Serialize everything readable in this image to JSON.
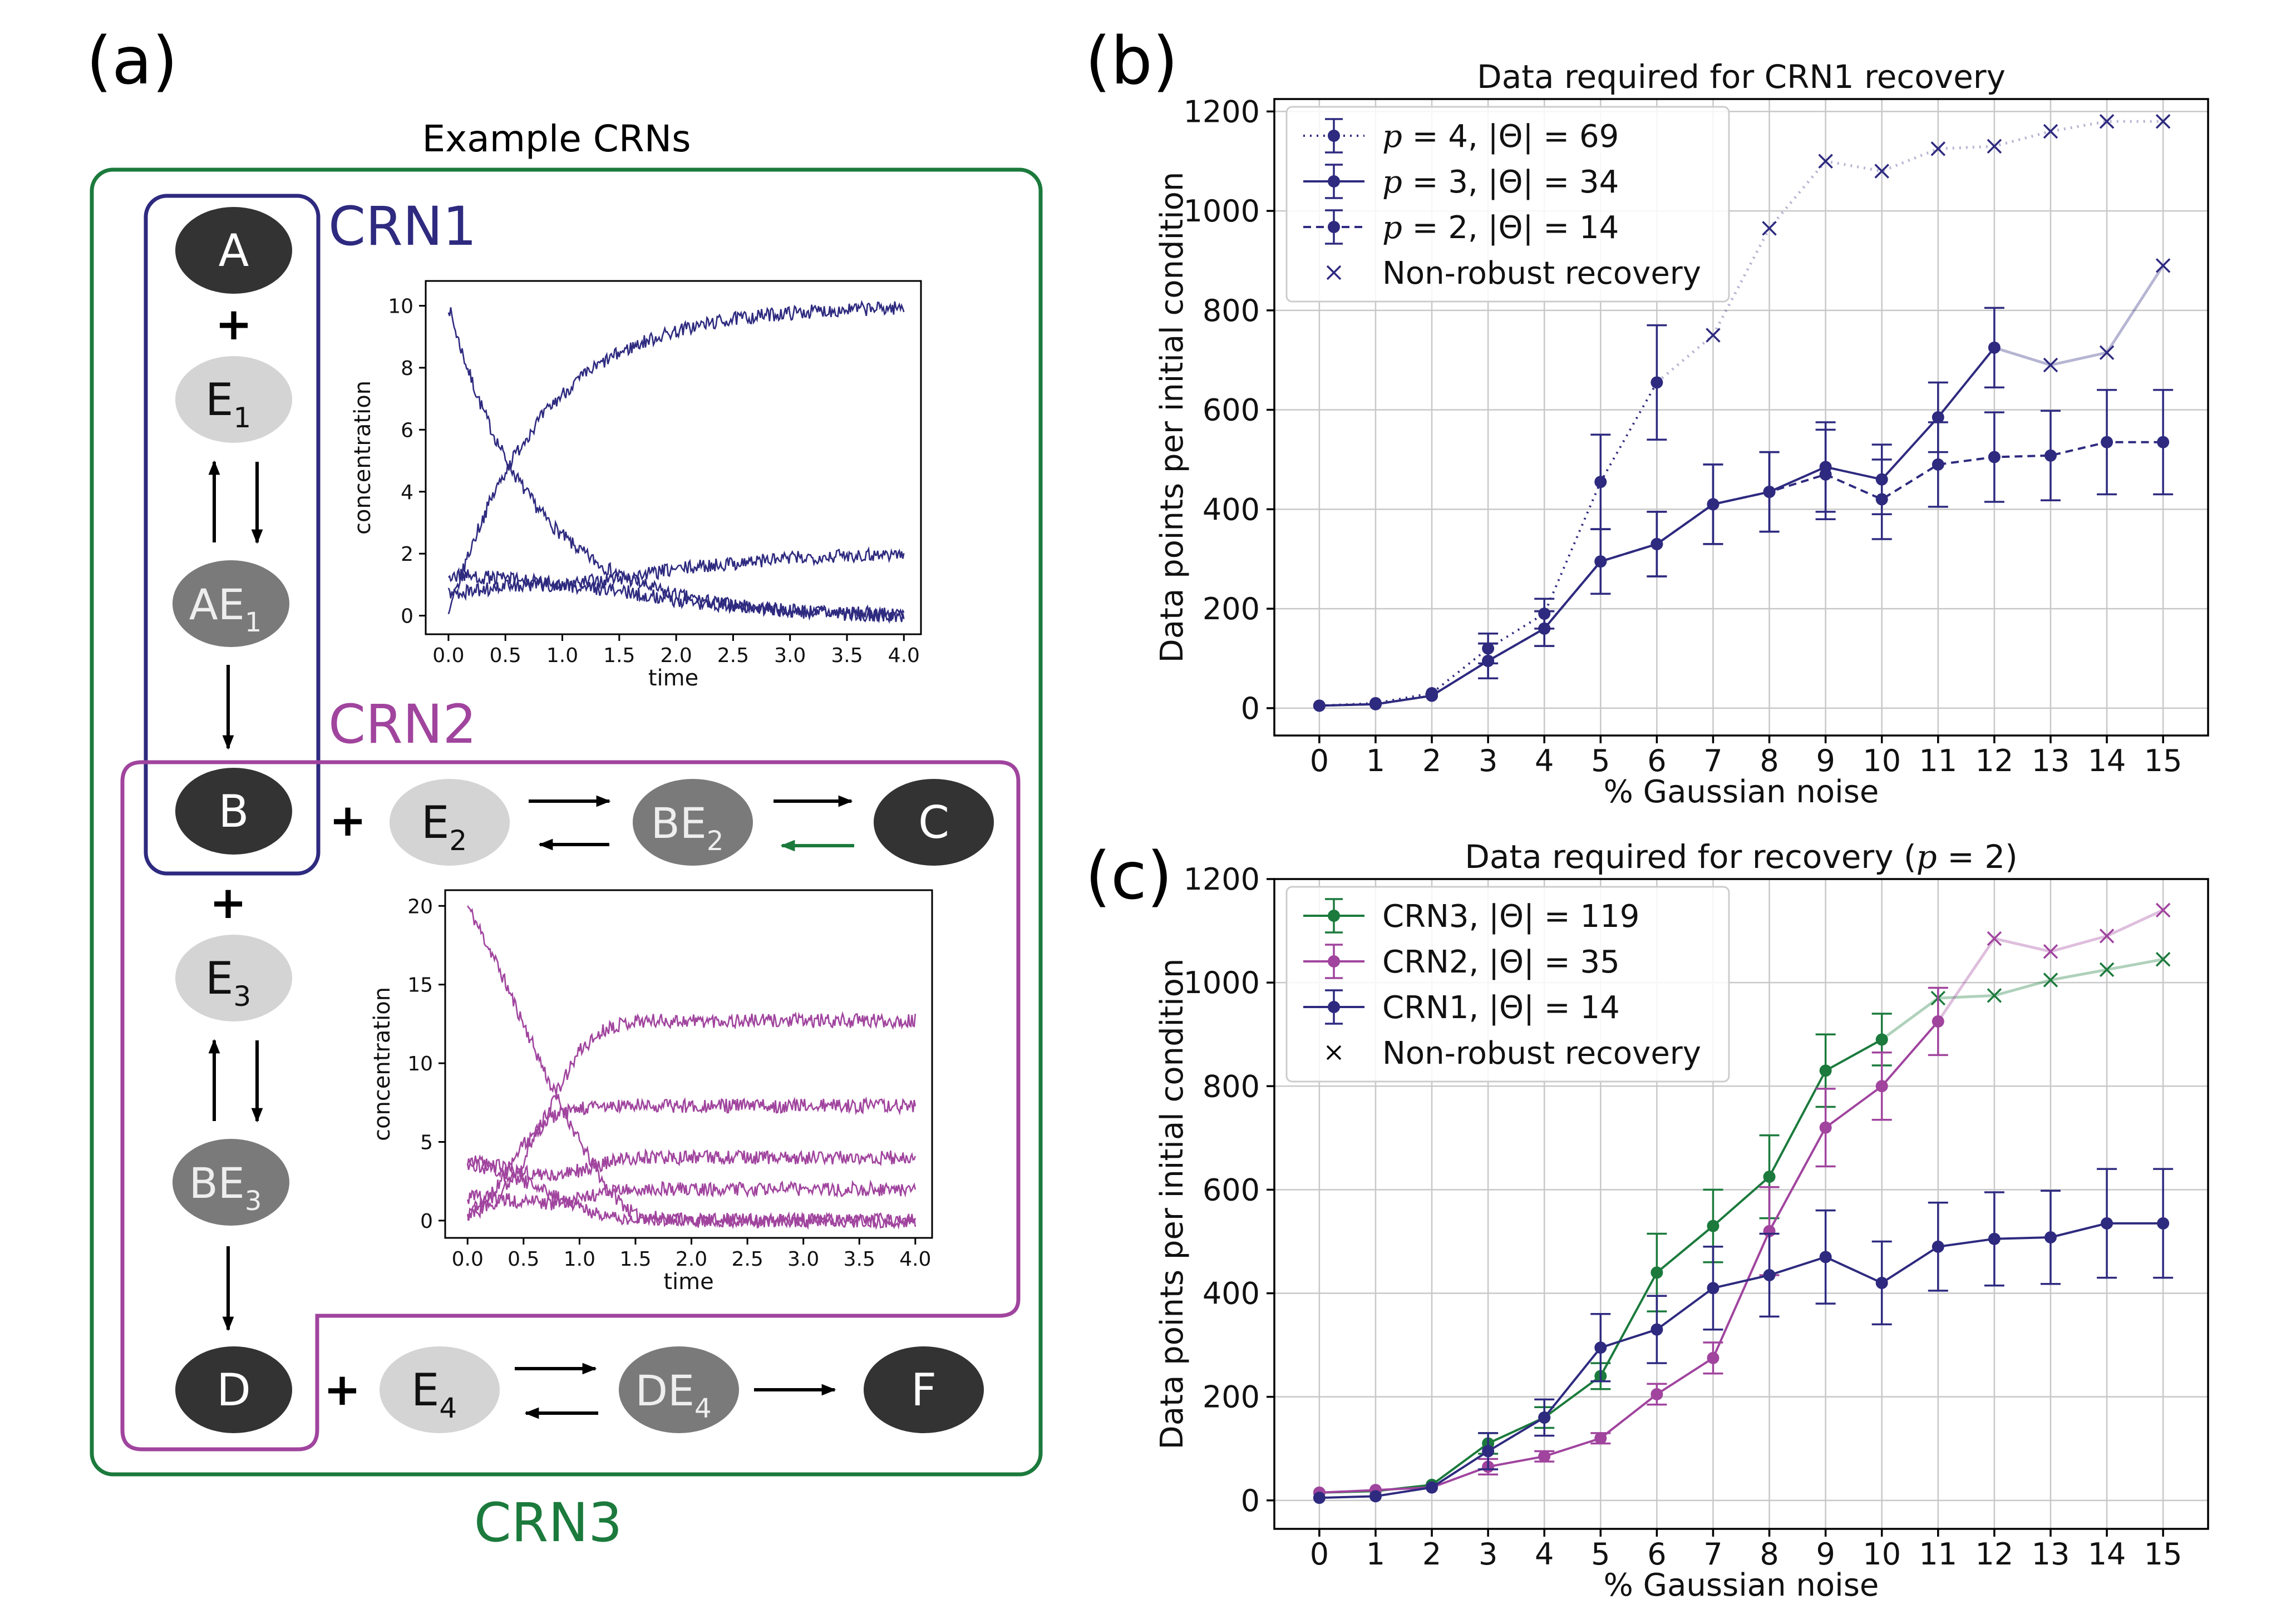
{
  "colors": {
    "crn1": "#2e2a7f",
    "crn2": "#a0449e",
    "crn3": "#1b7a3c",
    "node_dark": "#333333",
    "node_mid": "#7a7a7a",
    "node_light": "#d4d4d4",
    "grid": "#c8c8c8"
  },
  "panel_a": {
    "label": "(a)",
    "title": "Example CRNs",
    "crn1_label": "CRN1",
    "crn2_label": "CRN2",
    "crn3_label": "CRN3",
    "plus": "+",
    "species": {
      "A": "A",
      "B": "B",
      "C": "C",
      "D": "D",
      "F": "F",
      "E": "E",
      "AE": "AE",
      "BE": "BE",
      "DE": "DE",
      "sub1": "1",
      "sub2": "2",
      "sub3": "3",
      "sub4": "4"
    },
    "inset1": {
      "xlabel": "time",
      "ylabel": "concentration",
      "xticks": [
        "0.0",
        "0.5",
        "1.0",
        "1.5",
        "2.0",
        "2.5",
        "3.0",
        "3.5",
        "4.0"
      ],
      "yticks": [
        "0",
        "2",
        "4",
        "6",
        "8",
        "10"
      ],
      "xlim": [
        -0.2,
        4.15
      ],
      "ylim": [
        -0.6,
        10.8
      ],
      "series": [
        {
          "name": "A",
          "type": "decay",
          "start": 10,
          "end": 0,
          "rate": 1.35
        },
        {
          "name": "B",
          "type": "rise",
          "start": 0,
          "end": 10,
          "rate": 1.25
        },
        {
          "name": "E1",
          "type": "curve",
          "points": [
            [
              0,
              1.3
            ],
            [
              0.5,
              1.2
            ],
            [
              1,
              1.0
            ],
            [
              1.5,
              1.2
            ],
            [
              2,
              1.5
            ],
            [
              2.5,
              1.7
            ],
            [
              3,
              1.85
            ],
            [
              3.5,
              1.95
            ],
            [
              4,
              2.0
            ]
          ]
        },
        {
          "name": "AE1",
          "type": "curve",
          "points": [
            [
              0,
              0.7
            ],
            [
              0.5,
              0.95
            ],
            [
              1,
              1.0
            ],
            [
              1.5,
              0.8
            ],
            [
              2,
              0.5
            ],
            [
              2.5,
              0.3
            ],
            [
              3,
              0.15
            ],
            [
              3.5,
              0.05
            ],
            [
              4,
              0.0
            ]
          ]
        }
      ]
    },
    "inset2": {
      "xlabel": "time",
      "ylabel": "concentration",
      "xticks": [
        "0.0",
        "0.5",
        "1.0",
        "1.5",
        "2.0",
        "2.5",
        "3.0",
        "3.5",
        "4.0"
      ],
      "yticks": [
        "0",
        "5",
        "10",
        "15",
        "20"
      ],
      "xlim": [
        -0.2,
        4.15
      ],
      "ylim": [
        -1.1,
        21
      ],
      "series": [
        {
          "name": "A",
          "type": "curve",
          "points": [
            [
              0,
              20
            ],
            [
              0.25,
              16.5
            ],
            [
              0.5,
              12.5
            ],
            [
              0.75,
              8.5
            ],
            [
              1,
              5
            ],
            [
              1.25,
              2
            ],
            [
              1.5,
              0.3
            ],
            [
              2,
              0
            ],
            [
              4,
              0
            ]
          ]
        },
        {
          "name": "C",
          "type": "curve",
          "points": [
            [
              0,
              0.3
            ],
            [
              0.25,
              1.2
            ],
            [
              0.5,
              3.8
            ],
            [
              0.75,
              7.5
            ],
            [
              1,
              10.8
            ],
            [
              1.25,
              12.3
            ],
            [
              1.5,
              12.7
            ],
            [
              2,
              12.7
            ],
            [
              4,
              12.7
            ]
          ]
        },
        {
          "name": "B",
          "type": "curve",
          "points": [
            [
              0,
              0.3
            ],
            [
              0.25,
              2
            ],
            [
              0.5,
              4.8
            ],
            [
              0.75,
              6.6
            ],
            [
              1,
              7.1
            ],
            [
              1.25,
              7.25
            ],
            [
              1.5,
              7.3
            ],
            [
              4,
              7.3
            ]
          ]
        },
        {
          "name": "E2",
          "type": "curve",
          "points": [
            [
              0,
              3.8
            ],
            [
              0.25,
              3.5
            ],
            [
              0.5,
              3.1
            ],
            [
              0.75,
              2.8
            ],
            [
              1,
              3.2
            ],
            [
              1.25,
              3.7
            ],
            [
              1.5,
              4.0
            ],
            [
              4,
              4.0
            ]
          ]
        },
        {
          "name": "BE2",
          "type": "curve",
          "points": [
            [
              0,
              1.5
            ],
            [
              0.25,
              1.4
            ],
            [
              0.5,
              1.2
            ],
            [
              0.75,
              1.1
            ],
            [
              1,
              1.4
            ],
            [
              1.25,
              1.8
            ],
            [
              1.5,
              2.0
            ],
            [
              4,
              2.0
            ]
          ]
        },
        {
          "name": "AE1",
          "type": "curve",
          "points": [
            [
              0,
              3.6
            ],
            [
              0.25,
              3.2
            ],
            [
              0.5,
              2.5
            ],
            [
              0.75,
              1.6
            ],
            [
              1,
              0.8
            ],
            [
              1.25,
              0.3
            ],
            [
              1.5,
              0.05
            ],
            [
              4,
              0
            ]
          ]
        }
      ]
    }
  },
  "chart_data": [
    {
      "id": "b",
      "type": "line",
      "panel_label": "(b)",
      "title": "Data required for CRN1 recovery",
      "xlabel": "% Gaussian noise",
      "ylabel": "Data points per initial condition",
      "xlim": [
        -0.8,
        15.8
      ],
      "ylim": [
        -55,
        1225
      ],
      "xticks": [
        0,
        1,
        2,
        3,
        4,
        5,
        6,
        7,
        8,
        9,
        10,
        11,
        12,
        13,
        14,
        15
      ],
      "yticks": [
        0,
        200,
        400,
        600,
        800,
        1000,
        1200
      ],
      "legend_position": "upper-left",
      "series": [
        {
          "name": "p = 4, |Θ| = 69",
          "math": "p4",
          "style": "dotted",
          "color": "#2e2a7f",
          "x": [
            0,
            1,
            2,
            3,
            4,
            5,
            6,
            7,
            8,
            9,
            10,
            11,
            12,
            13,
            14,
            15
          ],
          "y": [
            5,
            10,
            30,
            120,
            190,
            455,
            655,
            750,
            965,
            1100,
            1080,
            1125,
            1130,
            1160,
            1180,
            1180
          ],
          "err": [
            0,
            0,
            0,
            30,
            30,
            95,
            115,
            0,
            0,
            0,
            0,
            0,
            0,
            0,
            0,
            0
          ],
          "robust_until": 6
        },
        {
          "name": "p = 3, |Θ| = 34",
          "math": "p3",
          "style": "solid",
          "color": "#2e2a7f",
          "x": [
            0,
            1,
            2,
            3,
            4,
            5,
            6,
            7,
            8,
            9,
            10,
            11,
            12,
            13,
            14,
            15
          ],
          "y": [
            5,
            8,
            25,
            95,
            160,
            295,
            330,
            410,
            435,
            485,
            460,
            585,
            725,
            690,
            715,
            890
          ],
          "err": [
            0,
            0,
            0,
            35,
            35,
            65,
            65,
            80,
            80,
            90,
            70,
            70,
            80,
            0,
            0,
            0
          ],
          "robust_until": 12
        },
        {
          "name": "p = 2, |Θ| = 14",
          "math": "p2",
          "style": "dashed",
          "color": "#2e2a7f",
          "x": [
            0,
            1,
            2,
            3,
            4,
            5,
            6,
            7,
            8,
            9,
            10,
            11,
            12,
            13,
            14,
            15
          ],
          "y": [
            5,
            8,
            25,
            95,
            160,
            295,
            330,
            410,
            435,
            470,
            420,
            490,
            505,
            508,
            535,
            535
          ],
          "err": [
            0,
            0,
            0,
            35,
            35,
            65,
            65,
            80,
            80,
            90,
            80,
            85,
            90,
            90,
            105,
            105
          ],
          "robust_until": 15
        },
        {
          "name": "Non-robust recovery",
          "marker": "x",
          "style": "none",
          "color": "#2e2a7f"
        }
      ]
    },
    {
      "id": "c",
      "type": "line",
      "panel_label": "(c)",
      "title": "Data required for recovery",
      "title_math": "(p = 2)",
      "xlabel": "% Gaussian noise",
      "ylabel": "Data points per initial condition",
      "xlim": [
        -0.8,
        15.8
      ],
      "ylim": [
        -55,
        1200
      ],
      "xticks": [
        0,
        1,
        2,
        3,
        4,
        5,
        6,
        7,
        8,
        9,
        10,
        11,
        12,
        13,
        14,
        15
      ],
      "yticks": [
        0,
        200,
        400,
        600,
        800,
        1000,
        1200
      ],
      "legend_position": "upper-left",
      "series": [
        {
          "name": "CRN3, |Θ| = 119",
          "label": "CRN3",
          "theta": "119",
          "style": "solid",
          "color": "#1b7a3c",
          "x": [
            0,
            1,
            2,
            3,
            4,
            5,
            6,
            7,
            8,
            9,
            10,
            11,
            12,
            13,
            14,
            15
          ],
          "y": [
            15,
            18,
            30,
            110,
            160,
            240,
            440,
            530,
            625,
            830,
            890,
            970,
            975,
            1005,
            1025,
            1045
          ],
          "err": [
            0,
            0,
            0,
            20,
            20,
            25,
            75,
            70,
            80,
            70,
            50,
            0,
            0,
            0,
            0,
            0
          ],
          "robust_until": 10
        },
        {
          "name": "CRN2, |Θ| = 35",
          "label": "CRN2",
          "theta": "35",
          "style": "solid",
          "color": "#a0449e",
          "x": [
            0,
            1,
            2,
            3,
            4,
            5,
            6,
            7,
            8,
            9,
            10,
            11,
            12,
            13,
            14,
            15
          ],
          "y": [
            15,
            20,
            25,
            65,
            85,
            120,
            205,
            275,
            520,
            720,
            800,
            925,
            1085,
            1060,
            1090,
            1140
          ],
          "err": [
            0,
            0,
            0,
            15,
            10,
            10,
            20,
            30,
            85,
            75,
            65,
            65,
            0,
            0,
            0,
            0
          ],
          "robust_until": 11
        },
        {
          "name": "CRN1, |Θ| = 14",
          "label": "CRN1",
          "theta": "14",
          "style": "solid",
          "color": "#2e2a7f",
          "x": [
            0,
            1,
            2,
            3,
            4,
            5,
            6,
            7,
            8,
            9,
            10,
            11,
            12,
            13,
            14,
            15
          ],
          "y": [
            5,
            8,
            25,
            95,
            160,
            295,
            330,
            410,
            435,
            470,
            420,
            490,
            505,
            508,
            535,
            535
          ],
          "err": [
            0,
            0,
            0,
            35,
            35,
            65,
            65,
            80,
            80,
            90,
            80,
            85,
            90,
            90,
            105,
            105
          ],
          "robust_until": 15
        },
        {
          "name": "Non-robust recovery",
          "marker": "x",
          "style": "none",
          "color": "#000000"
        }
      ]
    }
  ]
}
